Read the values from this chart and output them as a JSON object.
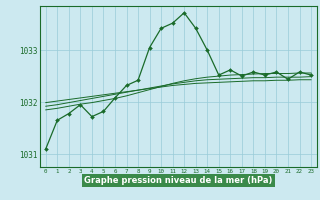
{
  "title": "Graphe pression niveau de la mer (hPa)",
  "bg_color": "#cce9f0",
  "plot_bg_color": "#cce9f0",
  "grid_color": "#99ccd9",
  "line_color": "#1a6b2a",
  "marker_color": "#1a6b2a",
  "label_bg_color": "#4a9a5a",
  "title_color": "#ffffff",
  "xlim": [
    -0.5,
    23.5
  ],
  "ylim": [
    1030.75,
    1033.85
  ],
  "yticks": [
    1031,
    1032,
    1033
  ],
  "xtick_labels": [
    "0",
    "1",
    "2",
    "3",
    "4",
    "5",
    "6",
    "7",
    "8",
    "9",
    "10",
    "11",
    "12",
    "13",
    "14",
    "15",
    "16",
    "17",
    "18",
    "19",
    "20",
    "21",
    "22",
    "23"
  ],
  "main_series": [
    1031.1,
    1031.65,
    1031.78,
    1031.95,
    1031.72,
    1031.82,
    1032.08,
    1032.32,
    1032.42,
    1033.05,
    1033.42,
    1033.52,
    1033.72,
    1033.42,
    1033.0,
    1032.52,
    1032.62,
    1032.5,
    1032.58,
    1032.52,
    1032.58,
    1032.44,
    1032.58,
    1032.52
  ],
  "smooth_series1": [
    1031.85,
    1031.88,
    1031.92,
    1031.96,
    1031.99,
    1032.03,
    1032.07,
    1032.12,
    1032.18,
    1032.24,
    1032.3,
    1032.36,
    1032.41,
    1032.45,
    1032.48,
    1032.5,
    1032.52,
    1032.53,
    1032.54,
    1032.55,
    1032.55,
    1032.55,
    1032.56,
    1032.56
  ],
  "smooth_series2": [
    1031.92,
    1031.95,
    1031.99,
    1032.03,
    1032.07,
    1032.11,
    1032.15,
    1032.19,
    1032.23,
    1032.27,
    1032.31,
    1032.35,
    1032.38,
    1032.41,
    1032.43,
    1032.44,
    1032.45,
    1032.46,
    1032.47,
    1032.47,
    1032.48,
    1032.48,
    1032.48,
    1032.49
  ],
  "smooth_series3": [
    1031.99,
    1032.02,
    1032.05,
    1032.08,
    1032.11,
    1032.14,
    1032.17,
    1032.2,
    1032.23,
    1032.26,
    1032.29,
    1032.32,
    1032.34,
    1032.36,
    1032.37,
    1032.38,
    1032.39,
    1032.4,
    1032.41,
    1032.41,
    1032.42,
    1032.42,
    1032.43,
    1032.43
  ]
}
